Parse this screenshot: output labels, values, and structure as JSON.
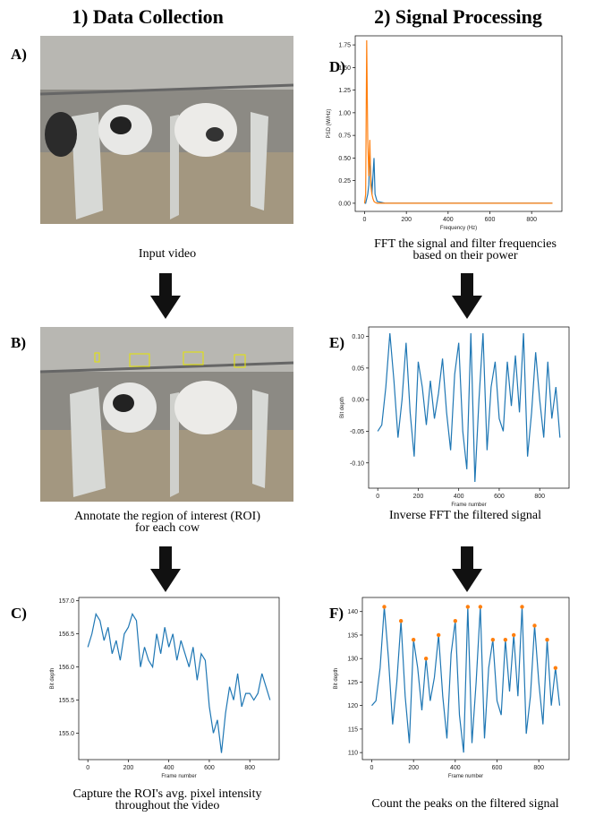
{
  "headings": [
    "1) Data Collection",
    "2) Signal Processing"
  ],
  "panels": [
    {
      "letter": "A)",
      "caption": [
        "Input video"
      ]
    },
    {
      "letter": "B)",
      "caption": [
        "Annotate the region of interest (ROI)",
        "for each cow"
      ]
    },
    {
      "letter": "C)",
      "caption": [
        "Capture the ROI's avg. pixel intensity",
        "throughout the video"
      ]
    },
    {
      "letter": "D)",
      "caption": [
        "FFT the signal and filter frequencies",
        "based on their power"
      ]
    },
    {
      "letter": "E)",
      "caption": [
        "Inverse FFT the filtered signal"
      ]
    },
    {
      "letter": "F)",
      "caption": [
        "Count the peaks on the filtered signal"
      ]
    }
  ],
  "chart_data": [
    {
      "type": "line",
      "xlabel": "Frame number",
      "ylabel": "Bit depth",
      "x": [
        0,
        20,
        40,
        60,
        80,
        100,
        120,
        140,
        160,
        180,
        200,
        220,
        240,
        260,
        280,
        300,
        320,
        340,
        360,
        380,
        400,
        420,
        440,
        460,
        480,
        500,
        520,
        540,
        560,
        580,
        600,
        620,
        640,
        660,
        680,
        700,
        720,
        740,
        760,
        780,
        800,
        820,
        840,
        860,
        880,
        900
      ],
      "series": [
        {
          "color": "#1f77b4",
          "values": [
            156.3,
            156.5,
            156.8,
            156.7,
            156.4,
            156.6,
            156.2,
            156.4,
            156.1,
            156.5,
            156.6,
            156.8,
            156.7,
            156.0,
            156.3,
            156.1,
            156.0,
            156.5,
            156.2,
            156.6,
            156.3,
            156.5,
            156.1,
            156.4,
            156.2,
            156.0,
            156.3,
            155.8,
            156.2,
            156.1,
            155.4,
            155.0,
            155.2,
            154.7,
            155.3,
            155.7,
            155.5,
            155.9,
            155.4,
            155.6,
            155.6,
            155.5,
            155.6,
            155.9,
            155.7,
            155.5
          ]
        }
      ],
      "xlim": [
        -45,
        945
      ],
      "ylim": [
        154.6,
        157.05
      ],
      "xticks": [
        0,
        200,
        400,
        600,
        800
      ],
      "yticks": [
        {
          "value": 155,
          "label": "155.0"
        },
        155.5,
        {
          "value": 156,
          "label": "156.0"
        },
        156.5,
        {
          "value": 157,
          "label": "157.0"
        }
      ]
    },
    {
      "type": "line",
      "xlabel": "Frequency (Hz)",
      "ylabel": "PSD (W/Hz)",
      "x": [
        0,
        5,
        10,
        15,
        20,
        25,
        30,
        35,
        40,
        45,
        50,
        60,
        100,
        300,
        500,
        700,
        900
      ],
      "series": [
        {
          "color": "#1f77b4",
          "values": [
            0,
            0,
            0.05,
            0.1,
            0.2,
            0.55,
            0.3,
            0.1,
            0.3,
            0.5,
            0.1,
            0.02,
            0,
            0,
            0,
            0,
            0
          ]
        },
        {
          "color": "#ff7f0e",
          "values": [
            0,
            0.1,
            1.8,
            0.7,
            0.3,
            0.7,
            0.2,
            0.1,
            0.05,
            0.02,
            0.01,
            0,
            0,
            0,
            0,
            0,
            0
          ]
        }
      ],
      "xlim": [
        -45,
        945
      ],
      "ylim": [
        -0.09,
        1.85
      ],
      "xticks": [
        0,
        200,
        400,
        600,
        800
      ],
      "yticks": [
        {
          "value": 0,
          "label": "0.00"
        },
        0.25,
        {
          "value": 0.5,
          "label": "0.50"
        },
        0.75,
        {
          "value": 1,
          "label": "1.00"
        },
        1.25,
        {
          "value": 1.5,
          "label": "1.50"
        },
        1.75
      ]
    },
    {
      "type": "line",
      "xlabel": "Frame number",
      "ylabel": "Bit depth",
      "x": [
        0,
        20,
        40,
        60,
        80,
        100,
        120,
        140,
        160,
        180,
        200,
        220,
        240,
        260,
        280,
        300,
        320,
        340,
        360,
        380,
        400,
        420,
        440,
        460,
        480,
        500,
        520,
        540,
        560,
        580,
        600,
        620,
        640,
        660,
        680,
        700,
        720,
        740,
        760,
        780,
        800,
        820,
        840,
        860,
        880,
        900
      ],
      "series": [
        {
          "color": "#1f77b4",
          "values": [
            -0.05,
            -0.04,
            0.02,
            0.105,
            0.03,
            -0.06,
            0.0,
            0.09,
            -0.02,
            -0.09,
            0.06,
            0.02,
            -0.04,
            0.03,
            -0.03,
            0.01,
            0.065,
            -0.02,
            -0.08,
            0.04,
            0.09,
            -0.05,
            -0.11,
            0.105,
            -0.13,
            0.0,
            0.105,
            -0.08,
            0.02,
            0.06,
            -0.03,
            -0.05,
            0.06,
            -0.01,
            0.07,
            -0.02,
            0.105,
            -0.09,
            -0.02,
            0.075,
            0.0,
            -0.06,
            0.06,
            -0.03,
            0.02,
            -0.06
          ]
        }
      ],
      "xlim": [
        -45,
        945
      ],
      "ylim": [
        -0.14,
        0.115
      ],
      "xticks": [
        0,
        200,
        400,
        600,
        800
      ],
      "yticks": [
        {
          "value": -0.1,
          "label": "-0.10"
        },
        -0.05,
        {
          "value": 0,
          "label": "0.00"
        },
        0.05,
        {
          "value": 0.1,
          "label": "0.10"
        }
      ]
    },
    {
      "type": "line",
      "xlabel": "Frame number",
      "ylabel": "Bit depth",
      "x": [
        0,
        20,
        40,
        60,
        80,
        100,
        120,
        140,
        160,
        180,
        200,
        220,
        240,
        260,
        280,
        300,
        320,
        340,
        360,
        380,
        400,
        420,
        440,
        460,
        480,
        500,
        520,
        540,
        560,
        580,
        600,
        620,
        640,
        660,
        680,
        700,
        720,
        740,
        760,
        780,
        800,
        820,
        840,
        860,
        880,
        900
      ],
      "series": [
        {
          "color": "#1f77b4",
          "values": [
            120,
            121,
            128,
            141,
            130,
            116,
            125,
            138,
            122,
            112,
            134,
            128,
            119,
            130,
            121,
            126,
            135,
            122,
            113,
            131,
            138,
            118,
            110,
            141,
            112,
            125,
            141,
            113,
            128,
            134,
            121,
            118,
            134,
            123,
            135,
            122,
            141,
            114,
            122,
            137,
            125,
            116,
            134,
            120,
            128,
            120
          ]
        }
      ],
      "peaks": {
        "color": "#ff7f0e",
        "x": [
          60,
          140,
          200,
          260,
          320,
          400,
          460,
          520,
          580,
          640,
          680,
          720,
          780,
          840,
          880
        ],
        "values": [
          141,
          138,
          134,
          130,
          135,
          138,
          141,
          141,
          134,
          134,
          135,
          141,
          137,
          134,
          128
        ]
      },
      "xlim": [
        -45,
        945
      ],
      "ylim": [
        108.5,
        143
      ],
      "xticks": [
        0,
        200,
        400,
        600,
        800
      ],
      "yticks": [
        110,
        115,
        120,
        125,
        130,
        135,
        140
      ]
    }
  ]
}
